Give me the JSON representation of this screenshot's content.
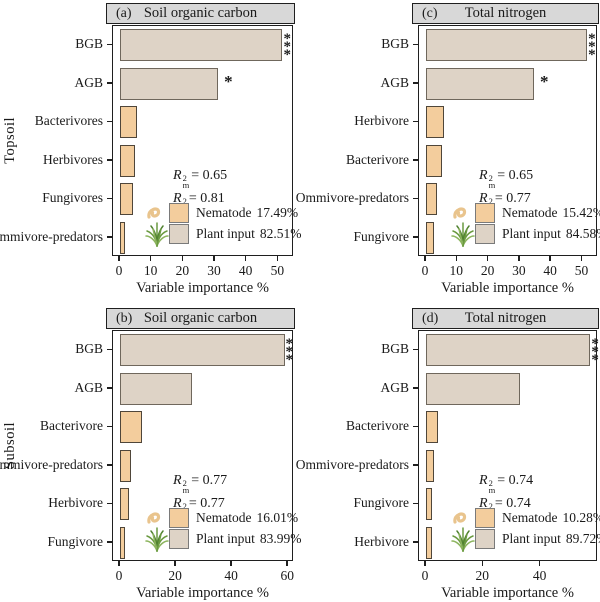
{
  "colors": {
    "plant_fill": "#ded3c6",
    "plant_border": "#6f675c",
    "nematode_fill": "#f3cd9d",
    "nematode_border": "#4f463a",
    "strip_bg": "#d8d8d8",
    "frame": "#1f1f1f",
    "grass_green_dark": "#4f8030",
    "grass_green_mid": "#6a9a40",
    "grass_green_light": "#8cb45e",
    "worm_tan": "#e9c48d"
  },
  "chart_data": {
    "type": "bar",
    "orientation": "horizontal",
    "x_axis_title": "Variable importance %",
    "legend_series": [
      "Nematode",
      "Plant input"
    ],
    "panels": [
      {
        "id": "a",
        "tag": "(a)",
        "title": "Soil organic carbon",
        "side_label": "Topsoil",
        "categories": [
          "BGB",
          "AGB",
          "Bacterivores",
          "Herbivores",
          "Fungivores",
          "Ommivore-predators"
        ],
        "values": [
          51.3,
          31.0,
          5.3,
          4.6,
          4.2,
          1.5
        ],
        "series": [
          "plant",
          "plant",
          "nematode",
          "nematode",
          "nematode",
          "nematode"
        ],
        "sig": [
          "***",
          "*",
          "",
          "",
          "",
          ""
        ],
        "xmax": 54,
        "xticks": [
          0,
          10,
          20,
          30,
          40,
          50
        ],
        "xlabel": "Variable importance %",
        "stats": [
          {
            "sym": "R",
            "sup": "2",
            "sub": "m",
            "rest": "= 0.65"
          },
          {
            "sym": "R",
            "sup": "2",
            "sub": "c",
            "rest": "= 0.81"
          }
        ],
        "legend": [
          {
            "icon": "nematode-icon",
            "swatch": "nematode",
            "label": "Nematode",
            "value": "17.49%"
          },
          {
            "icon": "grass-icon",
            "swatch": "plant",
            "label": "Plant input",
            "value": "82.51%"
          }
        ]
      },
      {
        "id": "c",
        "tag": "(c)",
        "title": "Total nitrogen",
        "side_label": "",
        "categories": [
          "BGB",
          "AGB",
          "Herbivore",
          "Bacterivore",
          "Ommivore-predators",
          "Fungivore"
        ],
        "values": [
          51.5,
          34.5,
          5.8,
          5.2,
          3.4,
          2.5
        ],
        "series": [
          "plant",
          "plant",
          "nematode",
          "nematode",
          "nematode",
          "nematode"
        ],
        "sig": [
          "***",
          "*",
          "",
          "",
          "",
          ""
        ],
        "xmax": 54,
        "xticks": [
          0,
          10,
          20,
          30,
          40,
          50
        ],
        "xlabel": "Variable importance %",
        "stats": [
          {
            "sym": "R",
            "sup": "2",
            "sub": "m",
            "rest": "= 0.65"
          },
          {
            "sym": "R",
            "sup": "2",
            "sub": "c",
            "rest": "= 0.77"
          }
        ],
        "legend": [
          {
            "icon": "nematode-icon",
            "swatch": "nematode",
            "label": "Nematode",
            "value": "15.42%"
          },
          {
            "icon": "grass-icon",
            "swatch": "plant",
            "label": "Plant input",
            "value": "84.58%"
          }
        ]
      },
      {
        "id": "b",
        "tag": "(b)",
        "title": "Soil organic carbon",
        "side_label": "Subsoil",
        "categories": [
          "BGB",
          "AGB",
          "Bacterivore",
          "Ommivore-predators",
          "Herbivore",
          "Fungivore"
        ],
        "values": [
          58.7,
          25.8,
          8.0,
          3.9,
          3.2,
          1.9
        ],
        "series": [
          "plant",
          "plant",
          "nematode",
          "nematode",
          "nematode",
          "nematode"
        ],
        "sig": [
          "***",
          "",
          "",
          "",
          "",
          ""
        ],
        "xmax": 61,
        "xticks": [
          0,
          20,
          40,
          60
        ],
        "xlabel": "Variable importance %",
        "stats": [
          {
            "sym": "R",
            "sup": "2",
            "sub": "m",
            "rest": "= 0.77"
          },
          {
            "sym": "R",
            "sup": "2",
            "sub": "c",
            "rest": "= 0.77"
          }
        ],
        "legend": [
          {
            "icon": "nematode-icon",
            "swatch": "nematode",
            "label": "Nematode",
            "value": "16.01%"
          },
          {
            "icon": "grass-icon",
            "swatch": "plant",
            "label": "Plant input",
            "value": "83.99%"
          }
        ]
      },
      {
        "id": "d",
        "tag": "(d)",
        "title": "Total nitrogen",
        "side_label": "",
        "categories": [
          "BGB",
          "AGB",
          "Bacterivore",
          "Ommivore-predators",
          "Fungivore",
          "Herbivore"
        ],
        "values": [
          57.4,
          32.7,
          4.3,
          2.9,
          2.0,
          2.2
        ],
        "series": [
          "plant",
          "plant",
          "nematode",
          "nematode",
          "nematode",
          "nematode"
        ],
        "sig": [
          "***",
          "",
          "",
          "",
          "",
          ""
        ],
        "xmax": 59,
        "xticks": [
          0,
          20,
          40
        ],
        "xlabel": "Variable importance %",
        "stats": [
          {
            "sym": "R",
            "sup": "2",
            "sub": "m",
            "rest": "= 0.74"
          },
          {
            "sym": "R",
            "sup": "2",
            "sub": "c",
            "rest": "= 0.74"
          }
        ],
        "legend": [
          {
            "icon": "nematode-icon",
            "swatch": "nematode",
            "label": "Nematode",
            "value": "10.28%"
          },
          {
            "icon": "grass-icon",
            "swatch": "plant",
            "label": "Plant input",
            "value": "89.72%"
          }
        ]
      }
    ]
  }
}
